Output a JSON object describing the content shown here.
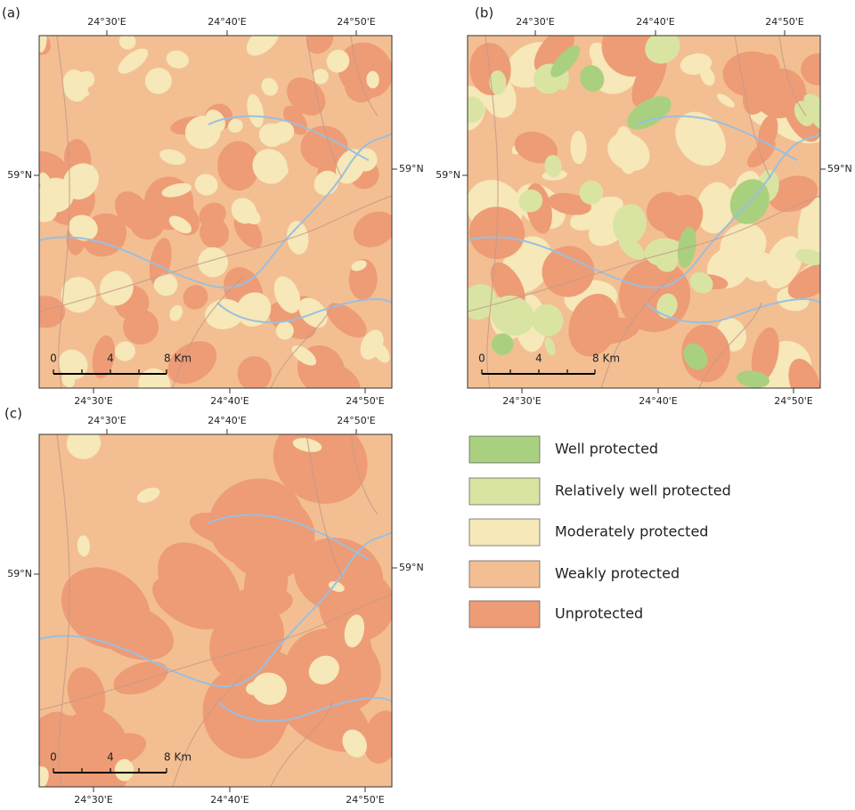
{
  "panels": [
    {
      "label": "(a)",
      "top_ticks": [
        "24°30'E",
        "24°40'E",
        "24°50'E"
      ],
      "bottom_ticks": [
        "24°30'E",
        "24°40'E",
        "24°50'E"
      ],
      "left_tick": "59°N",
      "right_tick": "59°N",
      "scale": [
        "0",
        "4",
        "8 Km"
      ]
    },
    {
      "label": "(b)",
      "top_ticks": [
        "24°30'E",
        "24°40'E",
        "24°50'E"
      ],
      "bottom_ticks": [
        "24°30'E",
        "24°40'E",
        "24°50'E"
      ],
      "left_tick": "59°N",
      "right_tick": "59°N",
      "scale": [
        "0",
        "4",
        "8 Km"
      ]
    },
    {
      "label": "(c)",
      "top_ticks": [
        "24°30'E",
        "24°40'E",
        "24°50'E"
      ],
      "bottom_ticks": [
        "24°30'E",
        "24°40'E",
        "24°50'E"
      ],
      "left_tick": "59°N",
      "right_tick": "59°N",
      "scale": [
        "0",
        "4",
        "8 Km"
      ]
    }
  ],
  "legend": [
    {
      "label": "Well protected",
      "color": "#a9d07f"
    },
    {
      "label": "Relatively well protected",
      "color": "#d9e4a3"
    },
    {
      "label": "Moderately protected",
      "color": "#f6e8b8"
    },
    {
      "label": "Weakly protected",
      "color": "#f3bf92"
    },
    {
      "label": "Unprotected",
      "color": "#ee9c76"
    }
  ]
}
